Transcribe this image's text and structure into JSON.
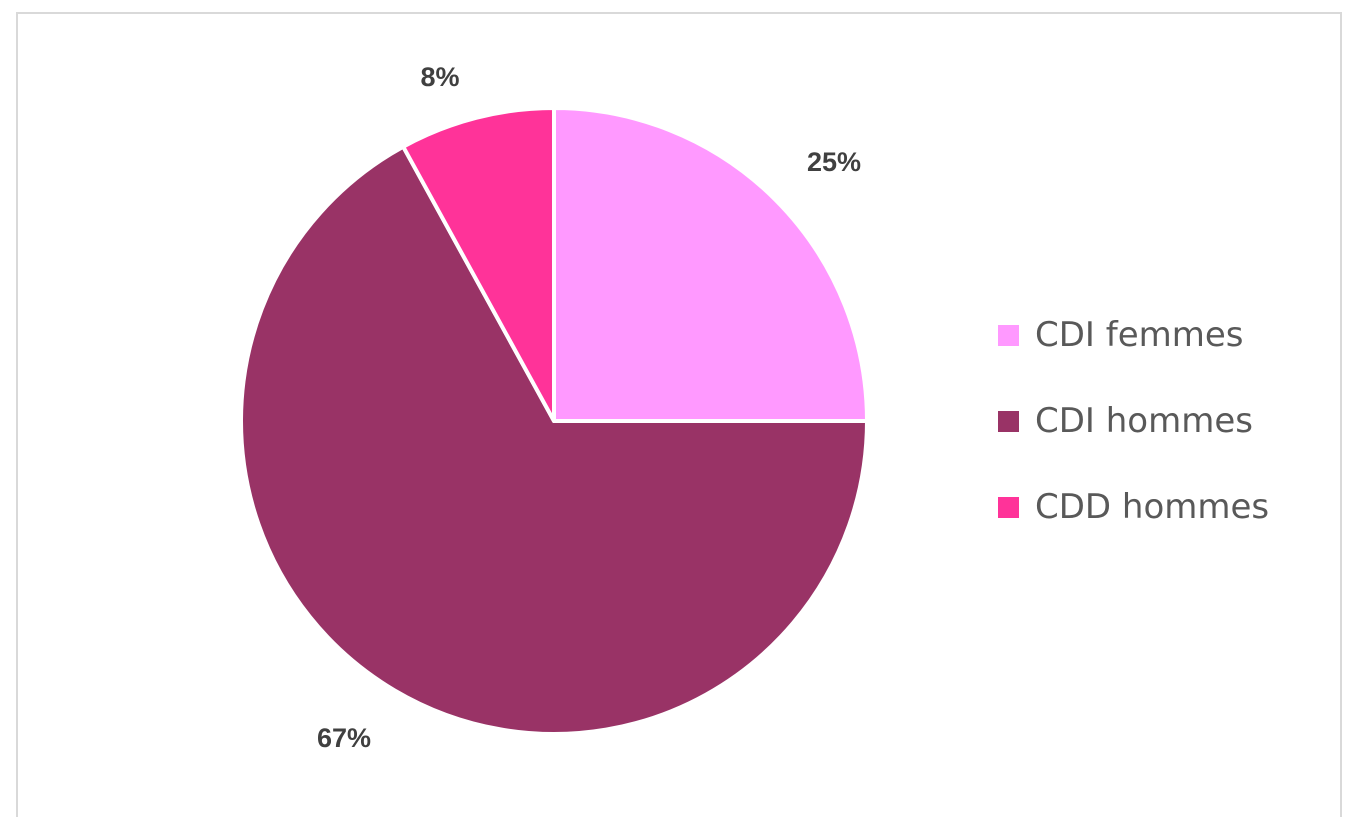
{
  "chart_data": {
    "type": "pie",
    "title": "",
    "categories": [
      "CDI femmes",
      "CDI hommes",
      "CDD hommes"
    ],
    "values": [
      25,
      67,
      8
    ],
    "value_labels": [
      "25%",
      "67%",
      "8%"
    ],
    "colors": [
      "#ff99ff",
      "#993366",
      "#ff3399"
    ],
    "start_angle_deg": 0,
    "direction": "clockwise",
    "slice_border_color": "#ffffff",
    "legend_position": "right"
  }
}
